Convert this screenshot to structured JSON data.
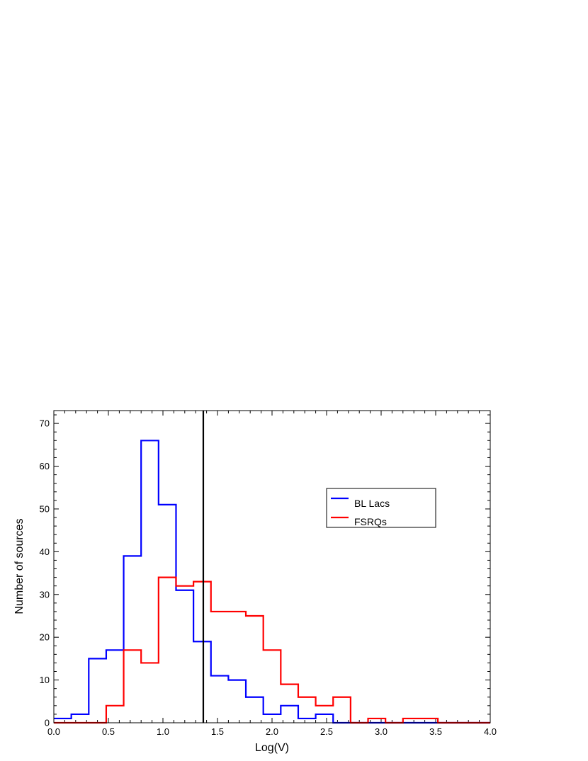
{
  "chart_data": {
    "type": "histogram",
    "title": "",
    "xlabel": "Log(V)",
    "ylabel": "Number of sources",
    "xlim": [
      0.0,
      4.0
    ],
    "ylim": [
      0,
      73
    ],
    "x_ticks": [
      "0.0",
      "0.5",
      "1.0",
      "1.5",
      "2.0",
      "2.5",
      "3.0",
      "3.5",
      "4.0"
    ],
    "y_ticks": [
      "0",
      "10",
      "20",
      "30",
      "40",
      "50",
      "60",
      "70"
    ],
    "bin_edges": [
      0.0,
      0.16,
      0.32,
      0.48,
      0.64,
      0.8,
      0.96,
      1.12,
      1.28,
      1.44,
      1.6,
      1.76,
      1.92,
      2.08,
      2.24,
      2.4,
      2.56,
      2.72,
      2.88,
      3.04,
      3.2,
      3.36,
      3.52,
      3.68,
      3.84,
      4.0
    ],
    "series": [
      {
        "name": "BL Lacs",
        "color": "#0000ff",
        "values": [
          1,
          2,
          15,
          17,
          39,
          66,
          51,
          31,
          19,
          11,
          10,
          6,
          2,
          4,
          1,
          2,
          0,
          0,
          0,
          0,
          0,
          0,
          0,
          0,
          0
        ]
      },
      {
        "name": "FSRQs",
        "color": "#ff0000",
        "values": [
          0,
          0,
          0,
          4,
          17,
          14,
          34,
          32,
          33,
          26,
          26,
          25,
          17,
          9,
          6,
          4,
          6,
          0,
          1,
          0,
          1,
          1,
          0,
          0,
          0
        ]
      }
    ],
    "vertical_line": {
      "x": 1.37,
      "color": "#000000"
    },
    "legend_position": "upper-right",
    "grid": false
  }
}
